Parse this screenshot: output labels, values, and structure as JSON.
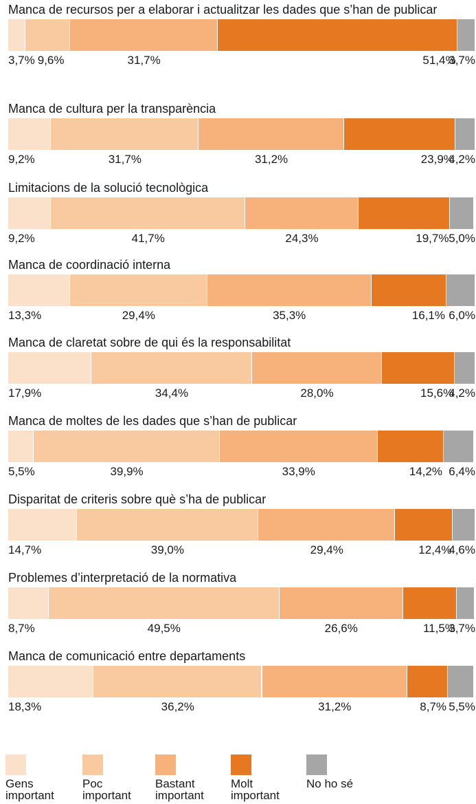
{
  "chart_data": {
    "type": "stacked_bar",
    "categories": [
      "Manca de recursos per a elaborar i actualitzar les dades que s’han de publicar",
      "Manca de cultura per la transparència",
      "Limitacions de la solució tecnològica",
      "Manca de coordinació interna",
      "Manca de claretat sobre de qui és la responsabilitat",
      "Manca de moltes de les dades que s’han de publicar",
      "Disparitat de criteris sobre què s’ha de publicar",
      "Problemes d’interpretació de la normativa",
      "Manca de comunicació entre departaments"
    ],
    "xlim": [
      0,
      100
    ],
    "series": [
      {
        "name": "Gens important",
        "color": "#fbe1ca",
        "values": [
          3.7,
          9.2,
          9.2,
          13.3,
          17.9,
          5.5,
          14.7,
          8.7,
          18.3
        ],
        "value_labels": [
          "3,7%",
          "9,2%",
          "9,2%",
          "13,3%",
          "17,9%",
          "5,5%",
          "14,7%",
          "8,7%",
          "18,3%"
        ]
      },
      {
        "name": "Poc important",
        "color": "#f9c9a0",
        "values": [
          9.6,
          31.7,
          41.7,
          29.4,
          34.4,
          39.9,
          39.0,
          49.5,
          36.2
        ],
        "value_labels": [
          "9,6%",
          "31,7%",
          "41,7%",
          "29,4%",
          "34,4%",
          "39,9%",
          "39,0%",
          "49,5%",
          "36,2%"
        ]
      },
      {
        "name": "Bastant important",
        "color": "#f7b27b",
        "values": [
          31.7,
          31.2,
          24.3,
          35.3,
          28.0,
          33.9,
          29.4,
          26.6,
          31.2
        ],
        "value_labels": [
          "31,7%",
          "31,2%",
          "24,3%",
          "35,3%",
          "28,0%",
          "33,9%",
          "29,4%",
          "26,6%",
          "31,2%"
        ]
      },
      {
        "name": "Molt important",
        "color": "#e67822",
        "values": [
          51.4,
          23.9,
          19.7,
          16.1,
          15.6,
          14.2,
          12.4,
          11.5,
          8.7
        ],
        "value_labels": [
          "51,4%",
          "23,9%",
          "19,7%",
          "16,1%",
          "15,6%",
          "14,2%",
          "12,4%",
          "11,5%",
          "8,7%"
        ]
      },
      {
        "name": "No ho sé",
        "color": "#a6a6a6",
        "values": [
          3.7,
          4.2,
          5.0,
          6.0,
          4.2,
          6.4,
          4.6,
          3.7,
          5.5
        ],
        "value_labels": [
          "3,7%",
          "4,2%",
          "5,0%",
          "6,0%",
          "4,2%",
          "6,4%",
          "4,6%",
          "3,7%",
          "5,5%"
        ]
      }
    ]
  }
}
